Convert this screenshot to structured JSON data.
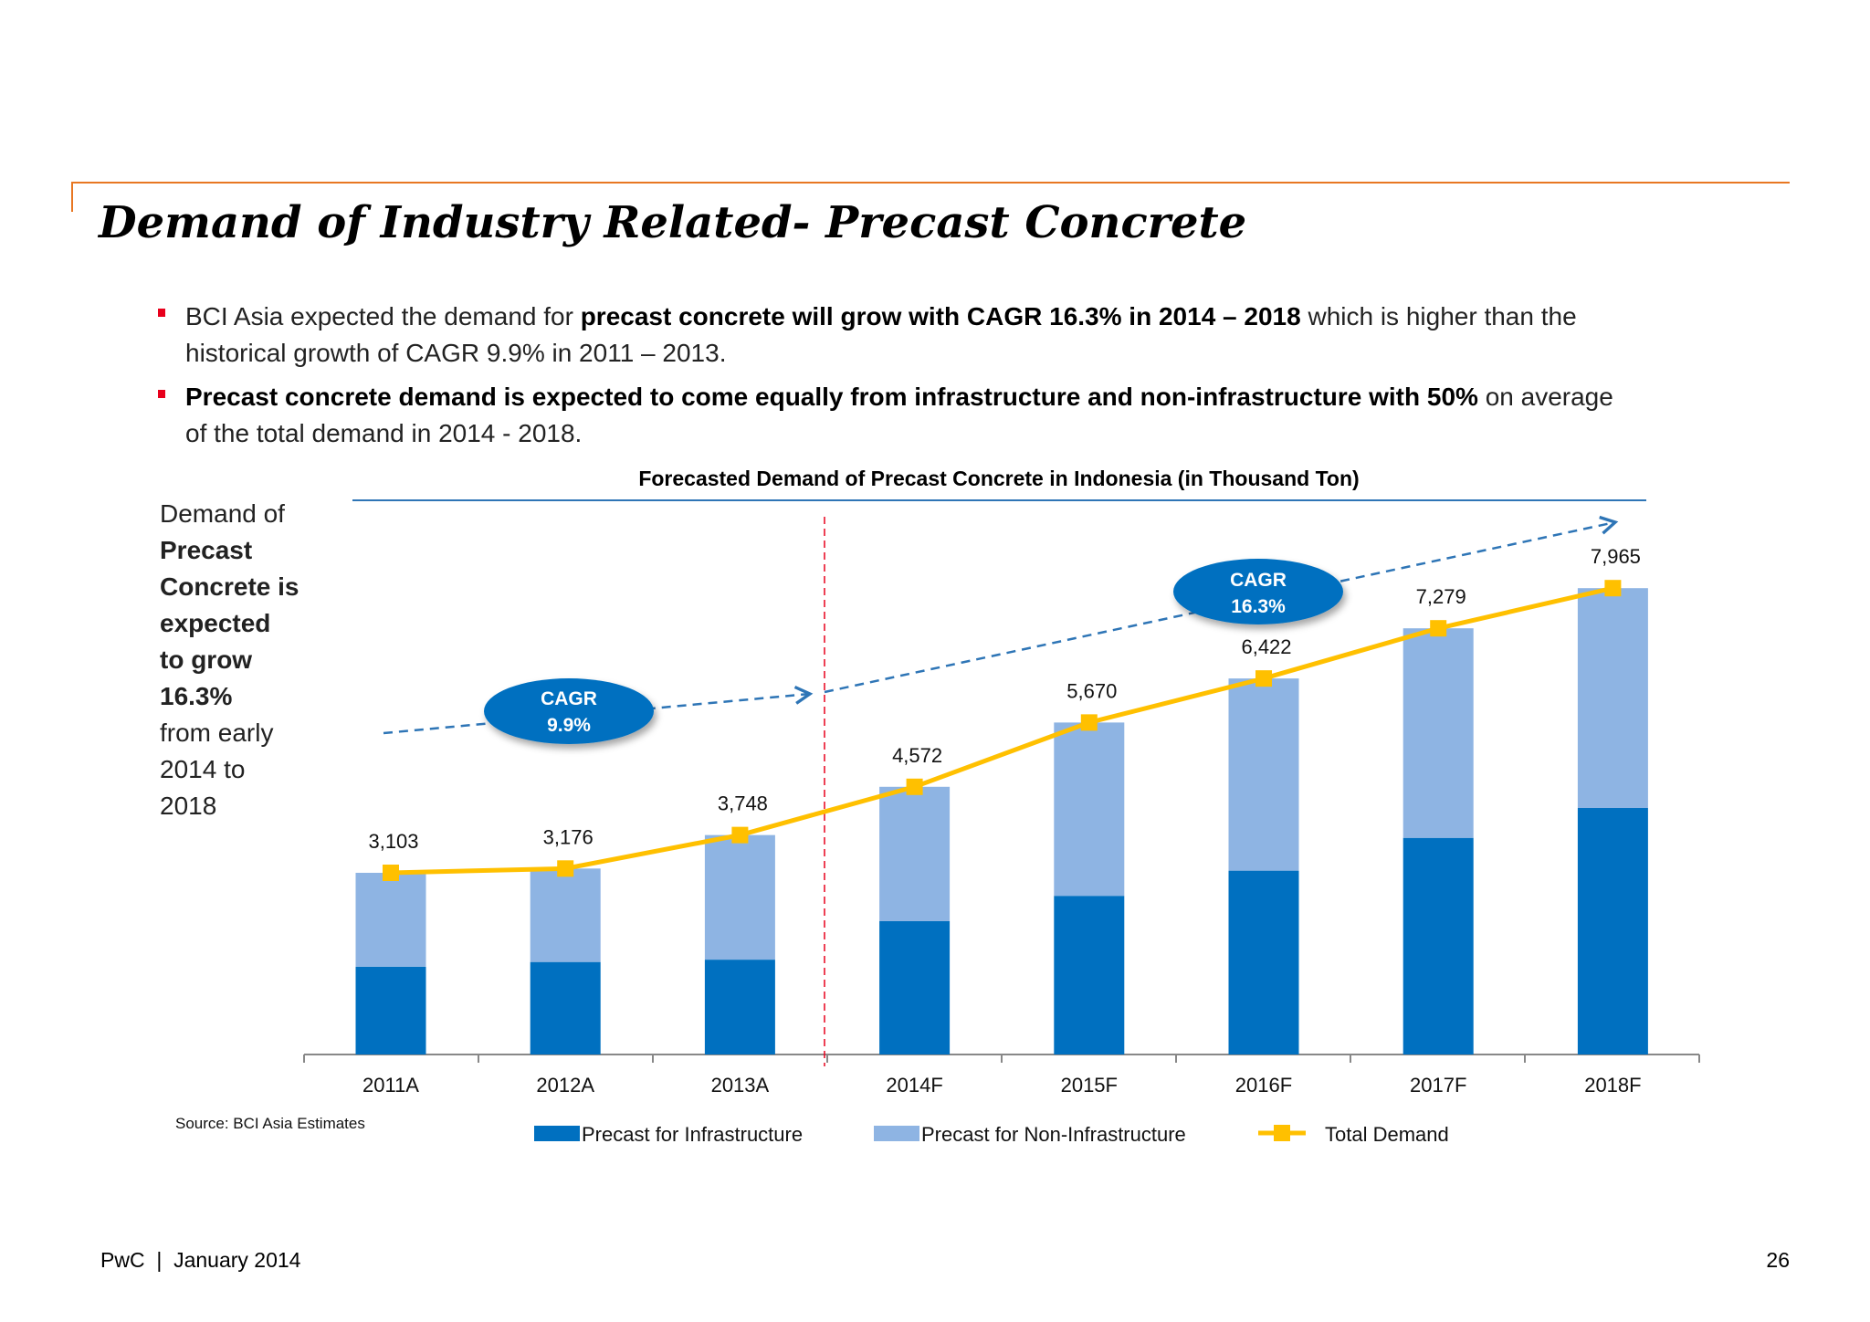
{
  "title": "Demand of Industry Related- Precast Concrete",
  "bullets": [
    {
      "l1a": "BCI Asia expected the demand for ",
      "l1b": "precast concrete will grow with CAGR 16.3% in 2014 – 2018",
      "l1c": " which is higher than the",
      "l2": "historical growth of CAGR 9.9% in 2011 – 2013."
    },
    {
      "l1a": "",
      "l1b": "Precast concrete demand is expected to come equally from infrastructure and non-infrastructure with 50%",
      "l1c": " on average",
      "l2": "of the total demand in 2014 - 2018."
    }
  ],
  "side_note": [
    {
      "text": "Demand of",
      "bold": false
    },
    {
      "text": "Precast",
      "bold": true
    },
    {
      "text": "Concrete is",
      "bold": true
    },
    {
      "text": "expected",
      "bold": true
    },
    {
      "text": "to grow",
      "bold": true
    },
    {
      "text": "16.3%",
      "bold": true
    },
    {
      "text": "from early",
      "bold": false
    },
    {
      "text": "2014 to",
      "bold": false
    },
    {
      "text": "2018",
      "bold": false
    }
  ],
  "chart_data": {
    "type": "bar",
    "stacked": true,
    "title": "Forecasted Demand of Precast Concrete in Indonesia (in Thousand Ton)",
    "categories": [
      "2011A",
      "2012A",
      "2013A",
      "2014F",
      "2015F",
      "2016F",
      "2017F",
      "2018F"
    ],
    "series": [
      {
        "name": "Precast for Infrastructure",
        "color": "#0070C0",
        "values": [
          1500,
          1580,
          1620,
          2280,
          2710,
          3140,
          3700,
          4210
        ]
      },
      {
        "name": "Precast for Non-Infrastructure",
        "color": "#8EB4E3",
        "values": [
          1603,
          1596,
          2128,
          2292,
          2960,
          3282,
          3579,
          3755
        ]
      },
      {
        "name": "Total Demand",
        "type": "line",
        "color": "#FFC000",
        "values": [
          3103,
          3176,
          3748,
          4572,
          5670,
          6422,
          7279,
          7965
        ]
      }
    ],
    "data_labels": [
      "3,103",
      "3,176",
      "3,748",
      "4,572",
      "5,670",
      "6,422",
      "7,279",
      "7,965"
    ],
    "annotations": [
      {
        "line1": "CAGR",
        "line2": "9.9%"
      },
      {
        "line1": "CAGR",
        "line2": "16.3%"
      }
    ],
    "ylim": [
      0,
      8500
    ],
    "grid": false,
    "legend": "bottom"
  },
  "source": "Source: BCI Asia Estimates",
  "footer": {
    "left": "PwC  |  January 2014",
    "page": "26"
  },
  "colors": {
    "accent": "#E87722",
    "bullet": "#E8001C",
    "cagr_bubble": "#0070C0",
    "divider": "#E8001C"
  }
}
